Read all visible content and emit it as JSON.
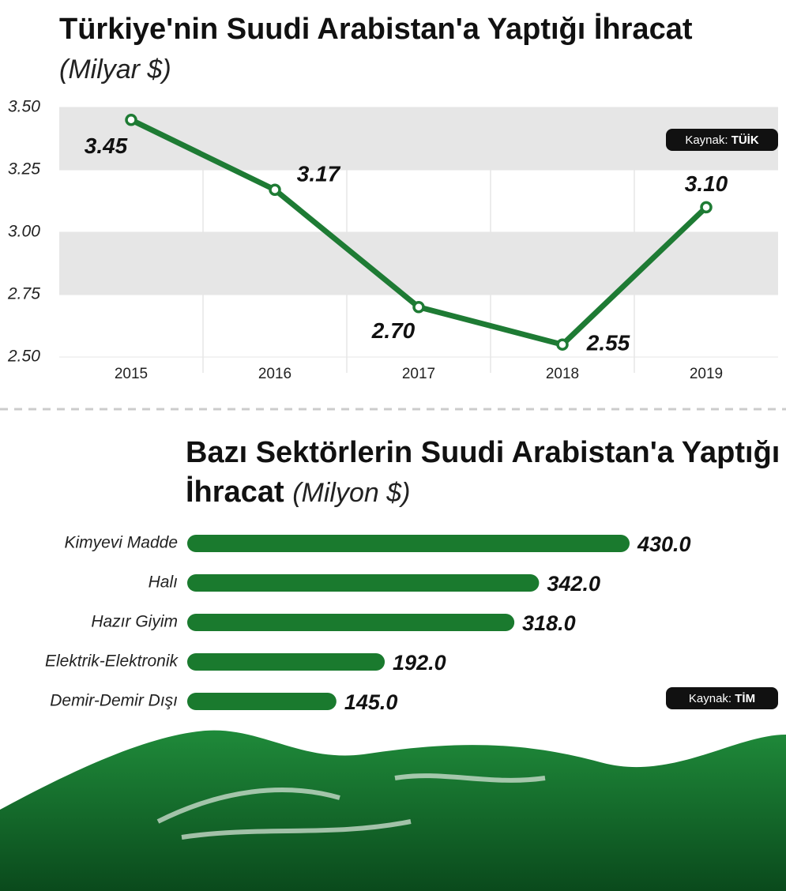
{
  "chart_data": [
    {
      "type": "line",
      "title": "Türkiye'nin Suudi Arabistan'a Yaptığı İhracat",
      "unit": "(Milyar $)",
      "categories": [
        "2015",
        "2016",
        "2017",
        "2018",
        "2019"
      ],
      "values": [
        3.45,
        3.17,
        2.7,
        2.55,
        3.1
      ],
      "value_labels": [
        "3.45",
        "3.17",
        "2.70",
        "2.55",
        "3.10"
      ],
      "color": "#1e7b34",
      "ylim": [
        2.5,
        3.5
      ],
      "yticks": [
        {
          "value": 2.5,
          "label": "2.50"
        },
        2.75,
        {
          "value": 3,
          "label": "3.00"
        },
        3.25,
        {
          "value": 3.5,
          "label": "3.50"
        }
      ],
      "grid": true,
      "source_label": "Kaynak:",
      "source": "TÜİK"
    },
    {
      "type": "hbar",
      "title": "Bazı Sektörlerin Suudi Arabistan'a Yaptığı İhracat",
      "unit": "(Milyon $)",
      "categories": [
        "Kimyevi Madde",
        "Halı",
        "Hazır Giyim",
        "Elektrik-Elektronik",
        "Demir-Demir Dışı"
      ],
      "values": [
        430,
        342,
        318,
        192,
        145
      ],
      "value_labels": [
        "430.0",
        "342.0",
        "318.0",
        "192.0",
        "145.0"
      ],
      "color": "#1a7a2e",
      "source_label": "Kaynak:",
      "source": "TİM"
    }
  ]
}
